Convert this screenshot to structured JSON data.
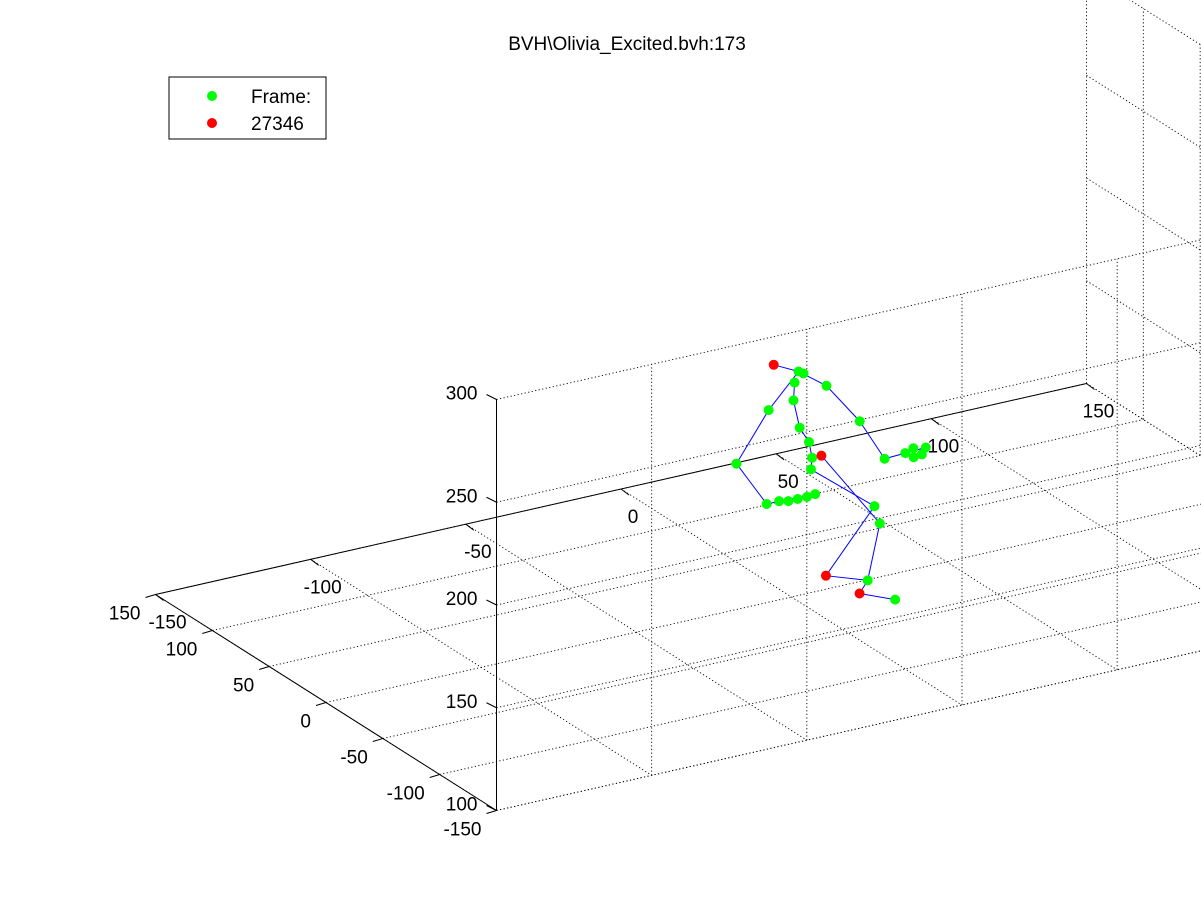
{
  "chart_data": {
    "type": "scatter",
    "projection": "3d",
    "title": "BVH\\Olivia_Excited.bvh:173",
    "grid": true,
    "legend_placement": "top-left",
    "legend": [
      {
        "label": "Frame:",
        "color": "#00ff00"
      },
      {
        "label": "27346",
        "color": "#ff0000"
      }
    ],
    "x_axis": {
      "range": [
        -150,
        150
      ],
      "ticks": [
        "-150",
        "-100",
        "-50",
        "0",
        "50",
        "100",
        "150"
      ]
    },
    "y_axis": {
      "range": [
        -150,
        150
      ],
      "ticks": [
        "-150",
        "-100",
        "-50",
        "0",
        "50",
        "100",
        "150"
      ]
    },
    "z_axis": {
      "range": [
        100,
        300
      ],
      "ticks": [
        "100",
        "150",
        "200",
        "250",
        "300"
      ]
    },
    "colors": {
      "joint": "#00ff00",
      "highlight": "#ff0000",
      "bone": "#0000ff"
    },
    "joints": [
      {
        "id": "head",
        "x": -5,
        "y": 2,
        "z": 214,
        "color": "red"
      },
      {
        "id": "neck",
        "x": 3,
        "y": 2,
        "z": 208,
        "color": "green"
      },
      {
        "id": "neck2",
        "x": 5,
        "y": 3,
        "z": 206,
        "color": "green"
      },
      {
        "id": "neck3",
        "x": 1,
        "y": 0,
        "z": 204,
        "color": "green"
      },
      {
        "id": "rshoulder",
        "x": 12,
        "y": 2,
        "z": 198,
        "color": "green"
      },
      {
        "id": "relbow",
        "x": 22,
        "y": 0,
        "z": 178,
        "color": "green"
      },
      {
        "id": "rwrist",
        "x": 30,
        "y": 0,
        "z": 157,
        "color": "green"
      },
      {
        "id": "rhand1",
        "x": 37,
        "y": 1,
        "z": 157,
        "color": "green"
      },
      {
        "id": "rhand2",
        "x": 40,
        "y": 2,
        "z": 158,
        "color": "green"
      },
      {
        "id": "rhand3",
        "x": 44,
        "y": 2,
        "z": 157,
        "color": "green"
      },
      {
        "id": "rhand4",
        "x": 42,
        "y": 0,
        "z": 155,
        "color": "green"
      },
      {
        "id": "rhand5",
        "x": 39,
        "y": -1,
        "z": 155,
        "color": "green"
      },
      {
        "id": "lshoulder",
        "x": -7,
        "y": 1,
        "z": 193,
        "color": "green"
      },
      {
        "id": "spine1",
        "x": 1,
        "y": 1,
        "z": 195,
        "color": "green"
      },
      {
        "id": "lelbow",
        "x": -17,
        "y": 2,
        "z": 170,
        "color": "green"
      },
      {
        "id": "lwrist",
        "x": -8,
        "y": 0,
        "z": 148,
        "color": "green"
      },
      {
        "id": "lhand1",
        "x": -4,
        "y": 0,
        "z": 148,
        "color": "green"
      },
      {
        "id": "lhand2",
        "x": -1,
        "y": 0,
        "z": 147,
        "color": "green"
      },
      {
        "id": "lhand3",
        "x": 2,
        "y": 0,
        "z": 147,
        "color": "green"
      },
      {
        "id": "lhand4",
        "x": 5,
        "y": 0,
        "z": 147,
        "color": "green"
      },
      {
        "id": "lhand5",
        "x": 8,
        "y": 1,
        "z": 147,
        "color": "green"
      },
      {
        "id": "spine2",
        "x": 3,
        "y": 1,
        "z": 181,
        "color": "green"
      },
      {
        "id": "spine3",
        "x": 6,
        "y": 1,
        "z": 173,
        "color": "green"
      },
      {
        "id": "hips",
        "x": 7,
        "y": 1,
        "z": 165,
        "color": "green"
      },
      {
        "id": "hipsR",
        "x": 10,
        "y": 1,
        "z": 165,
        "color": "red"
      },
      {
        "id": "pelvis",
        "x": 7,
        "y": 2,
        "z": 159,
        "color": "green"
      },
      {
        "id": "rknee",
        "x": 26,
        "y": -2,
        "z": 136,
        "color": "green"
      },
      {
        "id": "lknee",
        "x": 27,
        "y": -4,
        "z": 128,
        "color": "green"
      },
      {
        "id": "lankle",
        "x": 10,
        "y": -3,
        "z": 108,
        "color": "red"
      },
      {
        "id": "rankle",
        "x": 22,
        "y": -7,
        "z": 103,
        "color": "green"
      },
      {
        "id": "rheel",
        "x": 19,
        "y": -8,
        "z": 98,
        "color": "red"
      },
      {
        "id": "rtoe",
        "x": 29,
        "y": -12,
        "z": 93,
        "color": "green"
      }
    ],
    "bones": [
      [
        "head",
        "neck"
      ],
      [
        "neck",
        "rshoulder"
      ],
      [
        "rshoulder",
        "relbow"
      ],
      [
        "relbow",
        "rwrist"
      ],
      [
        "rwrist",
        "rhand1"
      ],
      [
        "rhand1",
        "rhand3"
      ],
      [
        "neck",
        "lshoulder"
      ],
      [
        "lshoulder",
        "lelbow"
      ],
      [
        "lelbow",
        "lwrist"
      ],
      [
        "lwrist",
        "lhand5"
      ],
      [
        "neck3",
        "spine1"
      ],
      [
        "spine1",
        "spine2"
      ],
      [
        "spine2",
        "spine3"
      ],
      [
        "spine3",
        "hips"
      ],
      [
        "hips",
        "pelvis"
      ],
      [
        "pelvis",
        "rknee"
      ],
      [
        "hipsR",
        "lknee"
      ],
      [
        "rknee",
        "lankle"
      ],
      [
        "lknee",
        "rankle"
      ],
      [
        "rankle",
        "rheel"
      ],
      [
        "rheel",
        "rtoe"
      ],
      [
        "lankle",
        "rankle"
      ]
    ]
  }
}
